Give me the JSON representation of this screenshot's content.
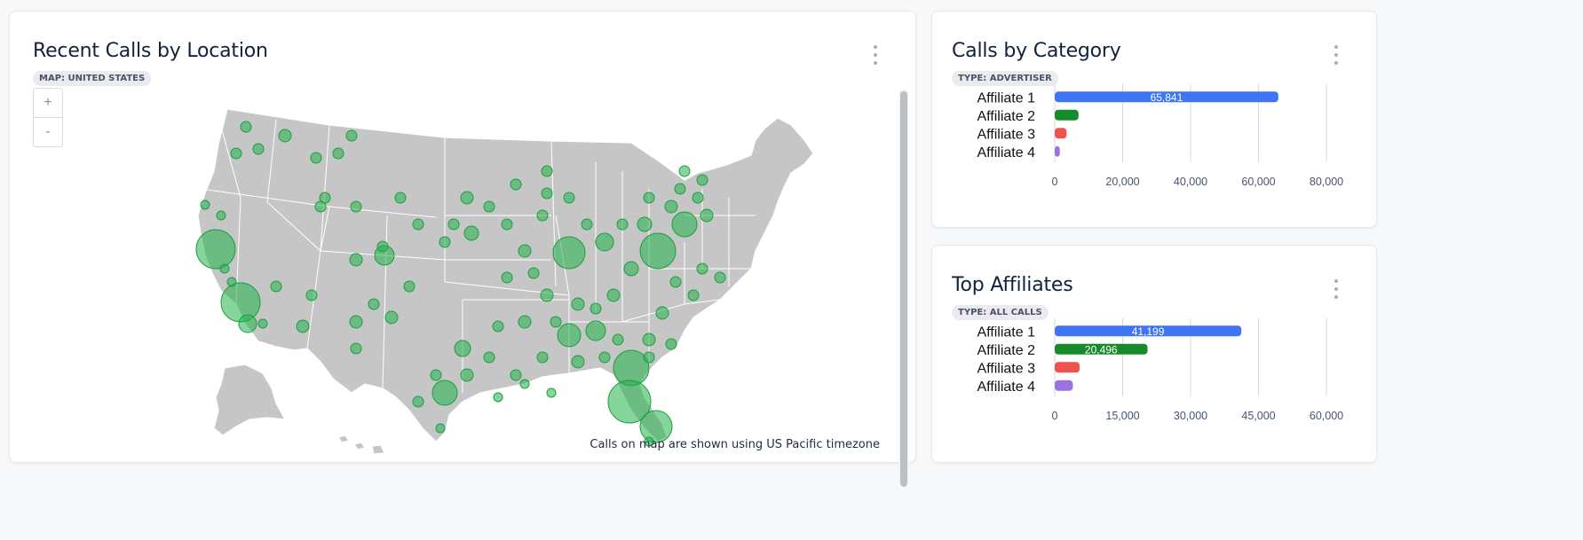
{
  "map_card": {
    "title": "Recent Calls by Location",
    "badge": "MAP: UNITED STATES",
    "zoom_in": "+",
    "zoom_out": "-",
    "footnote": "Calls on map are shown using US Pacific timezone",
    "land_color": "#c6c6c6",
    "marker_color": "#22b24c"
  },
  "category_card": {
    "title": "Calls by Category",
    "badge": "TYPE: ADVERTISER"
  },
  "affiliates_card": {
    "title": "Top Affiliates",
    "badge": "TYPE: ALL CALLS"
  },
  "chart_data": [
    {
      "type": "bar",
      "orientation": "horizontal",
      "categories": [
        "Affiliate 1",
        "Affiliate 2",
        "Affiliate 3",
        "Affiliate 4"
      ],
      "values": [
        65841,
        7000,
        3500,
        1500
      ],
      "value_labels": [
        "65,841",
        "",
        "",
        ""
      ],
      "colors": [
        "#3e74f5",
        "#178a2b",
        "#ef5350",
        "#169487"
      ],
      "last_color": "#9c72e0",
      "xlim": [
        0,
        80000
      ],
      "xticks": [
        "0",
        "20,000",
        "40,000",
        "60,000",
        "80,000"
      ],
      "xtick_values": [
        0,
        20000,
        40000,
        60000,
        80000
      ],
      "grid": true
    },
    {
      "type": "bar",
      "orientation": "horizontal",
      "categories": [
        "Affiliate 1",
        "Affiliate 2",
        "Affiliate 3",
        "Affiliate 4"
      ],
      "values": [
        41199,
        20496,
        5500,
        4000
      ],
      "value_labels": [
        "41,199",
        "20,496",
        "",
        ""
      ],
      "colors": [
        "#3e74f5",
        "#178a2b",
        "#ef5350",
        "#169487"
      ],
      "last_color": "#9c72e0",
      "xlim": [
        0,
        60000
      ],
      "xticks": [
        "0",
        "15,000",
        "30,000",
        "45,000",
        "60,000"
      ],
      "xtick_values": [
        0,
        15000,
        30000,
        45000,
        60000
      ],
      "grid": true
    }
  ]
}
